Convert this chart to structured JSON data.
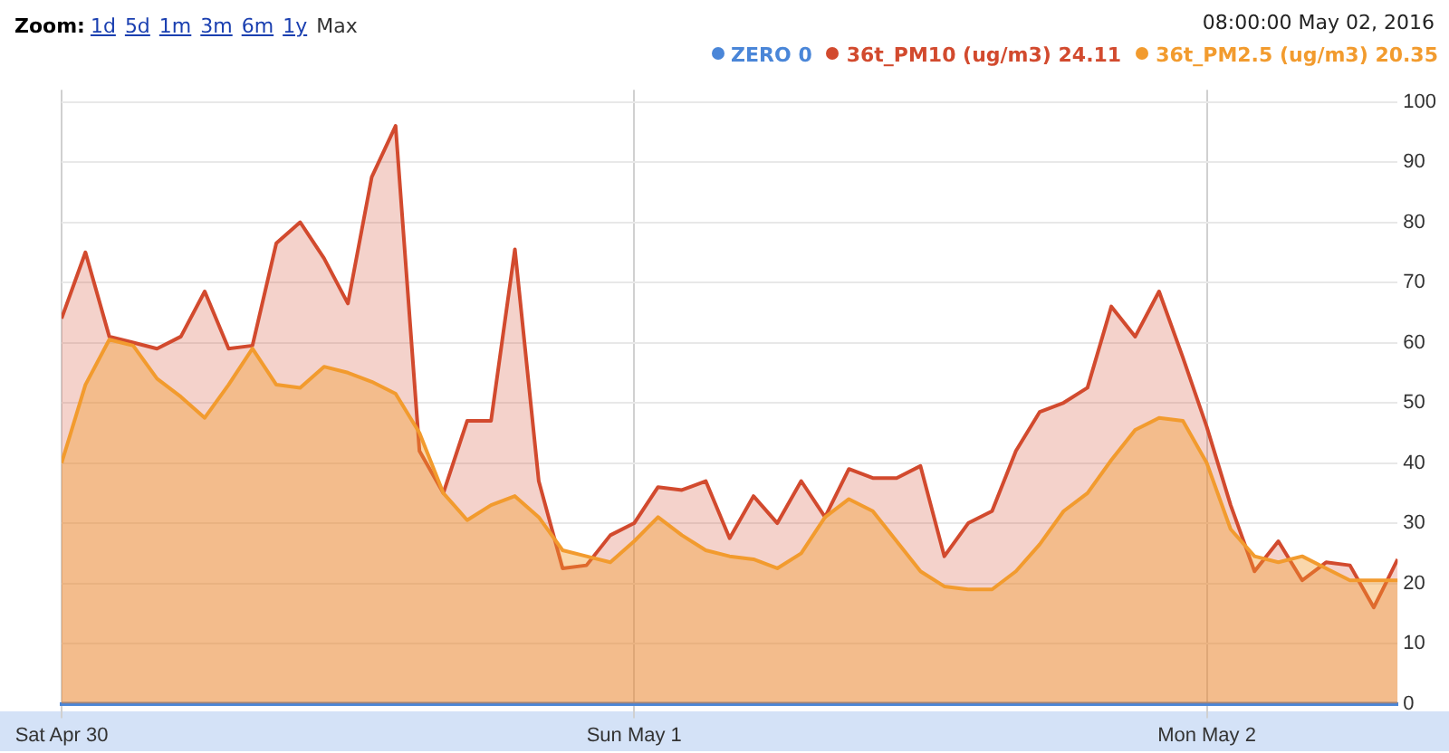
{
  "chart_data": {
    "type": "area",
    "annotations": [
      "Zoom:",
      "1d",
      "5d",
      "1m",
      "3m",
      "6m",
      "1y",
      "Max",
      "08:00:00 May 02, 2016"
    ],
    "x": [
      "2016-04-30T00:00",
      "2016-04-30T01:00",
      "2016-04-30T02:00",
      "2016-04-30T03:00",
      "2016-04-30T04:00",
      "2016-04-30T05:00",
      "2016-04-30T06:00",
      "2016-04-30T07:00",
      "2016-04-30T08:00",
      "2016-04-30T09:00",
      "2016-04-30T10:00",
      "2016-04-30T11:00",
      "2016-04-30T12:00",
      "2016-04-30T13:00",
      "2016-04-30T14:00",
      "2016-04-30T15:00",
      "2016-04-30T16:00",
      "2016-04-30T17:00",
      "2016-04-30T18:00",
      "2016-04-30T19:00",
      "2016-04-30T20:00",
      "2016-04-30T21:00",
      "2016-04-30T22:00",
      "2016-04-30T23:00",
      "2016-05-01T00:00",
      "2016-05-01T01:00",
      "2016-05-01T02:00",
      "2016-05-01T03:00",
      "2016-05-01T04:00",
      "2016-05-01T05:00",
      "2016-05-01T06:00",
      "2016-05-01T07:00",
      "2016-05-01T08:00",
      "2016-05-01T09:00",
      "2016-05-01T10:00",
      "2016-05-01T11:00",
      "2016-05-01T12:00",
      "2016-05-01T13:00",
      "2016-05-01T14:00",
      "2016-05-01T15:00",
      "2016-05-01T16:00",
      "2016-05-01T17:00",
      "2016-05-01T18:00",
      "2016-05-01T19:00",
      "2016-05-01T20:00",
      "2016-05-01T21:00",
      "2016-05-01T22:00",
      "2016-05-01T23:00",
      "2016-05-02T00:00",
      "2016-05-02T01:00",
      "2016-05-02T02:00",
      "2016-05-02T03:00",
      "2016-05-02T04:00",
      "2016-05-02T05:00",
      "2016-05-02T06:00",
      "2016-05-02T07:00",
      "2016-05-02T08:00"
    ],
    "series": [
      {
        "name": "ZERO 0",
        "type": "line",
        "color": "#4a86d8",
        "values": [
          0,
          0,
          0,
          0,
          0,
          0,
          0,
          0,
          0,
          0,
          0,
          0,
          0,
          0,
          0,
          0,
          0,
          0,
          0,
          0,
          0,
          0,
          0,
          0,
          0,
          0,
          0,
          0,
          0,
          0,
          0,
          0,
          0,
          0,
          0,
          0,
          0,
          0,
          0,
          0,
          0,
          0,
          0,
          0,
          0,
          0,
          0,
          0,
          0,
          0,
          0,
          0,
          0,
          0,
          0,
          0,
          0
        ]
      },
      {
        "name": "36t_PM10 (ug/m3) 24.11",
        "color": "#d24a2e",
        "values": [
          64,
          75,
          61,
          60,
          59,
          61,
          68.5,
          59,
          59.5,
          76.5,
          80,
          74,
          66.5,
          87.5,
          96,
          42,
          35,
          47,
          47,
          75.5,
          37,
          22.5,
          23,
          28,
          30,
          36,
          35.5,
          37,
          27.5,
          34.5,
          30,
          37,
          31,
          39,
          37.5,
          37.5,
          39.5,
          24.5,
          30,
          32,
          42,
          48.5,
          50,
          52.5,
          66,
          61,
          68.5,
          57.5,
          46,
          33,
          22,
          27,
          20.5,
          23.5,
          23,
          16,
          24
        ]
      },
      {
        "name": "36t_PM2.5 (ug/m3) 20.35",
        "color": "#f29b2e",
        "values": [
          40,
          53,
          60.5,
          59.5,
          54,
          51,
          47.5,
          53,
          59,
          53,
          52.5,
          56,
          55,
          53.5,
          51.5,
          45,
          35,
          30.5,
          33,
          34.5,
          31,
          25.5,
          24.5,
          23.5,
          27,
          31,
          28,
          25.5,
          24.5,
          24,
          22.5,
          25,
          31,
          34,
          32,
          27,
          22,
          19.5,
          19,
          19,
          22,
          26.5,
          32,
          35,
          40.5,
          45.5,
          47.5,
          47,
          40,
          29,
          24.5,
          23.5,
          24.5,
          22.5,
          20.5,
          20.5,
          20.5
        ]
      }
    ],
    "xlim": [
      "2016-04-30T00:00",
      "2016-05-02T08:00"
    ],
    "xticks": [
      {
        "value": "2016-04-30",
        "label": "Sat Apr 30"
      },
      {
        "value": "2016-05-01",
        "label": "Sun May 1"
      },
      {
        "value": "2016-05-02",
        "label": "Mon May 2"
      }
    ],
    "ylim": [
      0,
      102
    ],
    "yticks": [
      0,
      10,
      20,
      30,
      40,
      50,
      60,
      70,
      80,
      90,
      100
    ],
    "grid": true,
    "legend": "top right",
    "marker": "none"
  }
}
